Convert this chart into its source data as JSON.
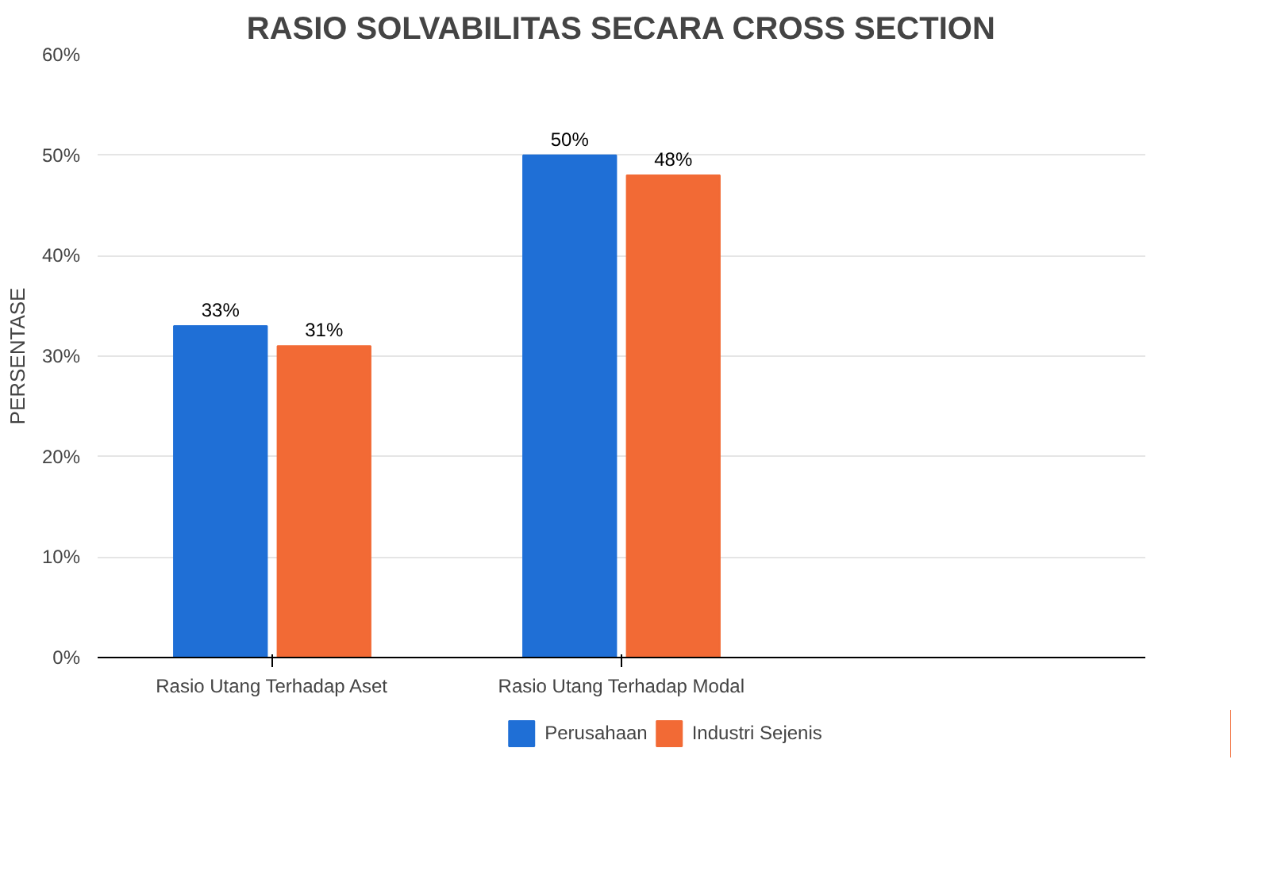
{
  "chart_data": {
    "type": "bar",
    "title": "RASIO SOLVABILITAS SECARA CROSS SECTION",
    "ylabel": "PERSENTASE",
    "categories": [
      "Rasio Utang Terhadap Aset",
      "Rasio Utang Terhadap Modal",
      null
    ],
    "series": [
      {
        "name": "Perusahaan",
        "color": "#1f6fd6",
        "values": [
          33,
          50,
          null
        ],
        "value_labels": [
          "33%",
          "50%",
          null
        ]
      },
      {
        "name": "Industri Sejenis",
        "color": "#f26a35",
        "values": [
          31,
          48,
          null
        ],
        "value_labels": [
          "31%",
          "48%",
          null
        ]
      }
    ],
    "ylim": [
      0,
      60
    ],
    "yticks": [
      {
        "value": 0,
        "label": "0%"
      },
      {
        "value": 10,
        "label": "10%"
      },
      {
        "value": 20,
        "label": "20%"
      },
      {
        "value": 30,
        "label": "30%"
      },
      {
        "value": 40,
        "label": "40%"
      },
      {
        "value": 50,
        "label": "50%"
      },
      {
        "value": 60,
        "label": "60%"
      }
    ],
    "grid": "y",
    "legend": "bottom"
  }
}
